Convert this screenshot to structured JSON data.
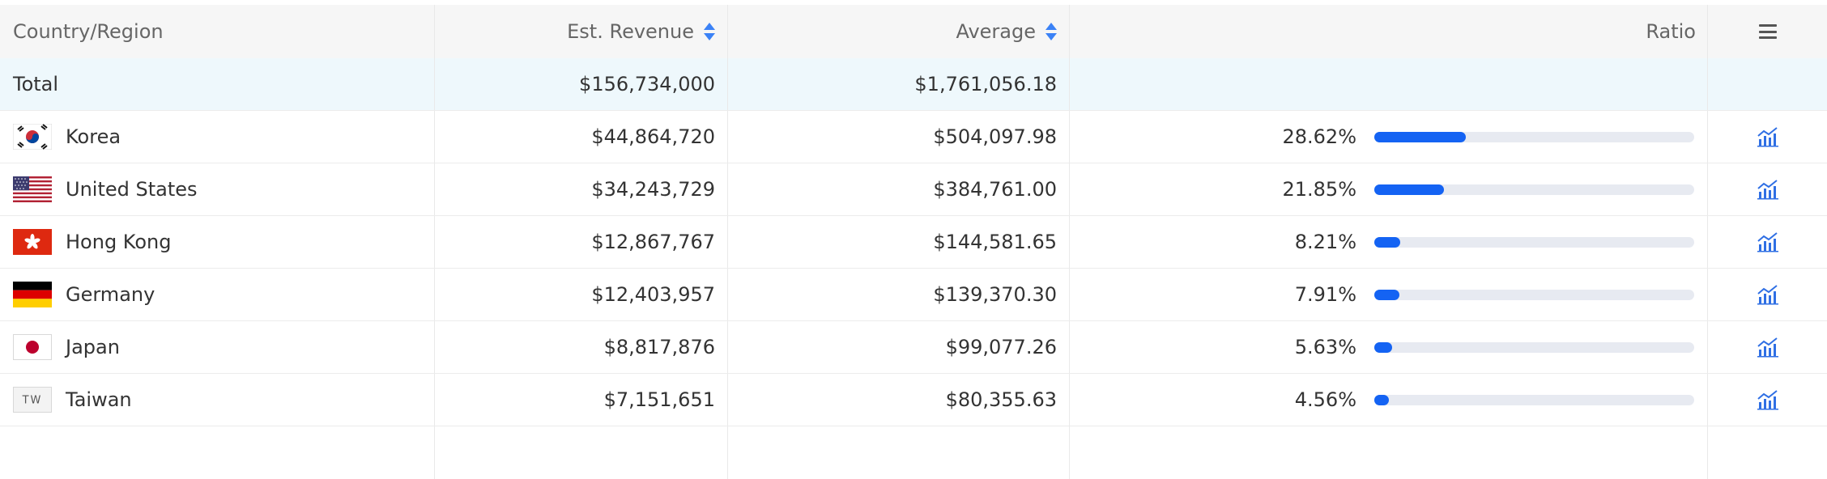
{
  "header": {
    "country_label": "Country/Region",
    "revenue_label": "Est. Revenue",
    "average_label": "Average",
    "ratio_label": "Ratio",
    "menu_icon": "menu-icon"
  },
  "total": {
    "label": "Total",
    "revenue": "$156,734,000",
    "average": "$1,761,056.18"
  },
  "rows": [
    {
      "country": "Korea",
      "flag": "flag-korea-icon",
      "revenue": "$44,864,720",
      "average": "$504,097.98",
      "ratio": "28.62%",
      "ratio_value": 28.62
    },
    {
      "country": "United States",
      "flag": "flag-united-states-icon",
      "revenue": "$34,243,729",
      "average": "$384,761.00",
      "ratio": "21.85%",
      "ratio_value": 21.85
    },
    {
      "country": "Hong Kong",
      "flag": "flag-hong-kong-icon",
      "revenue": "$12,867,767",
      "average": "$144,581.65",
      "ratio": "8.21%",
      "ratio_value": 8.21
    },
    {
      "country": "Germany",
      "flag": "flag-germany-icon",
      "revenue": "$12,403,957",
      "average": "$139,370.30",
      "ratio": "7.91%",
      "ratio_value": 7.91
    },
    {
      "country": "Japan",
      "flag": "flag-japan-icon",
      "revenue": "$8,817,876",
      "average": "$99,077.26",
      "ratio": "5.63%",
      "ratio_value": 5.63
    },
    {
      "country": "Taiwan",
      "flag": "flag-taiwan-icon",
      "flag_text": "TW",
      "revenue": "$7,151,651",
      "average": "$80,355.63",
      "ratio": "4.56%",
      "ratio_value": 4.56
    }
  ],
  "colors": {
    "accent": "#1463f3",
    "header_bg": "#f6f6f6",
    "total_bg": "#eef8fc",
    "bar_track": "#e7eaf1"
  }
}
